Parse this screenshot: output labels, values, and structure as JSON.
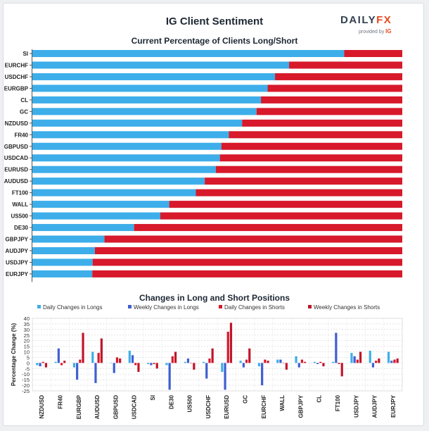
{
  "header": {
    "title": "IG Client Sentiment",
    "brand_daily": "DAILY",
    "brand_fx": "FX",
    "brand_sub": "provided by",
    "brand_ig": "IG"
  },
  "colors": {
    "long": "#3daee9",
    "short": "#d7192b",
    "weekly_long": "#3f5fd1",
    "weekly_short": "#c0152a"
  },
  "chart_data": [
    {
      "type": "bar",
      "orientation": "horizontal",
      "stacked": true,
      "title": "Current Percentage of Clients Long/Short",
      "categories": [
        "SI",
        "EURCHF",
        "USDCHF",
        "EURGBP",
        "CL",
        "GC",
        "NZDUSD",
        "FR40",
        "GBPUSD",
        "USDCAD",
        "EURUSD",
        "AUDUSD",
        "FT100",
        "WALL",
        "US500",
        "DE30",
        "GBPJPY",
        "AUDJPY",
        "USDJPY",
        "EURJPY"
      ],
      "series": [
        {
          "values": [
            84.3,
            69.4,
            65.6,
            63.6,
            61.8,
            60.6,
            56.7,
            53.1,
            51.1,
            50.7,
            49.6,
            46.6,
            44.2,
            37.0,
            34.6,
            27.5,
            19.5,
            16.9,
            16.3,
            16.2
          ]
        },
        {
          "values": [
            15.7,
            30.6,
            34.4,
            36.4,
            38.2,
            39.4,
            43.3,
            46.9,
            48.9,
            49.3,
            50.4,
            53.4,
            55.8,
            63.0,
            65.4,
            72.5,
            80.5,
            83.1,
            83.7,
            83.8
          ]
        }
      ],
      "xlim": [
        0,
        100
      ],
      "grid": false,
      "legend": "none"
    },
    {
      "type": "bar",
      "title": "Changes in Long and Short Positions",
      "ylabel": "Percentage Change (%)",
      "ylim": [
        -25,
        40
      ],
      "yticks": [
        -25,
        -20,
        -15,
        -10,
        -5,
        0,
        5,
        10,
        15,
        20,
        25,
        30,
        35,
        40
      ],
      "grid": true,
      "legend": "top",
      "categories": [
        "NZDUSD",
        "FR40",
        "EURGBP",
        "AUDUSD",
        "GBPUSD",
        "USDCAD",
        "SI",
        "DE30",
        "US500",
        "USDCHF",
        "EURUSD",
        "GC",
        "EURCHF",
        "WALL",
        "GBPJPY",
        "CL",
        "FT100",
        "USDJPY",
        "AUDJPY",
        "EURJPY"
      ],
      "series": [
        {
          "name": "Daily Changes in Longs",
          "values": [
            -2,
            1,
            -4,
            10,
            0,
            11,
            -1,
            -2,
            1,
            1,
            -8,
            2,
            -3,
            3,
            6,
            1,
            1,
            9,
            11,
            10
          ]
        },
        {
          "name": "Weekly Changes in Longs",
          "values": [
            -3,
            13,
            -15,
            -18,
            -9,
            7,
            -2,
            -24,
            4,
            -14,
            -24,
            -4,
            -20,
            3,
            -4,
            -1,
            27,
            6,
            -4,
            2
          ]
        },
        {
          "name": "Daily Changes in Shorts",
          "values": [
            1,
            -2,
            3,
            9,
            5,
            -2,
            -1,
            6,
            0,
            4,
            28,
            3,
            3,
            0,
            3,
            1,
            -1,
            3,
            2,
            3
          ]
        },
        {
          "name": "Weekly Changes in Shorts",
          "values": [
            -4,
            2,
            27,
            22,
            4,
            -8,
            -5,
            10,
            -6,
            13,
            36,
            13,
            2,
            -6,
            1,
            -3,
            -12,
            10,
            4,
            4
          ]
        }
      ]
    }
  ]
}
